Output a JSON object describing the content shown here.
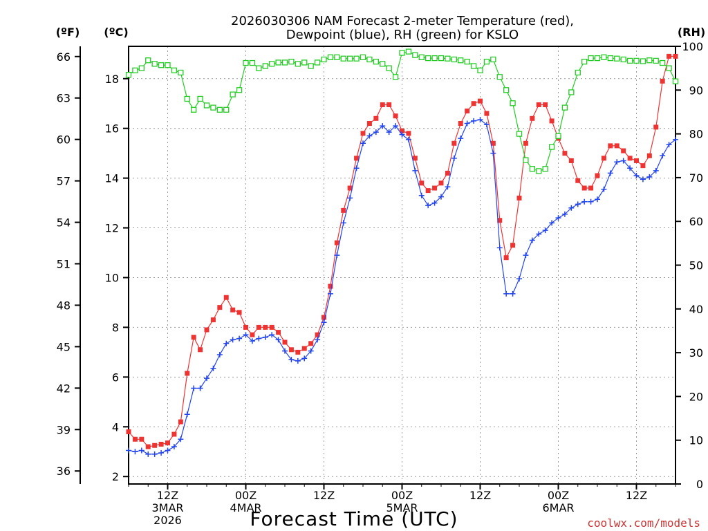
{
  "chart_data": {
    "type": "line",
    "title_line1": "2026030306 NAM Forecast 2-meter Temperature (red),",
    "title_line2": "Dewpoint (blue), RH (green) for KSLO",
    "xlabel": "Forecast Time (UTC)",
    "credit": "coolwx.com/models",
    "unit_f": "(ºF)",
    "unit_c": "(ºC)",
    "unit_rh": "(RH)",
    "x_unit": "forecast hour from 2026-03-03 06Z",
    "xlim": [
      6,
      90
    ],
    "ylim_c": [
      1.7,
      19.3
    ],
    "ylim_rh": [
      0,
      100
    ],
    "x_ticks": [
      {
        "x": 12,
        "lines": [
          "12Z",
          "3MAR",
          "2026"
        ]
      },
      {
        "x": 24,
        "lines": [
          "00Z",
          "4MAR"
        ]
      },
      {
        "x": 36,
        "lines": [
          "12Z"
        ]
      },
      {
        "x": 48,
        "lines": [
          "00Z",
          "5MAR"
        ]
      },
      {
        "x": 60,
        "lines": [
          "12Z"
        ]
      },
      {
        "x": 72,
        "lines": [
          "00Z",
          "6MAR"
        ]
      },
      {
        "x": 84,
        "lines": [
          "12Z"
        ]
      }
    ],
    "y_ticks_c": [
      2,
      4,
      6,
      8,
      10,
      12,
      14,
      16,
      18
    ],
    "y_ticks_f": [
      36,
      39,
      42,
      45,
      48,
      51,
      54,
      57,
      60,
      63,
      66
    ],
    "y_ticks_rh": [
      0,
      10,
      20,
      30,
      40,
      50,
      60,
      70,
      80,
      90,
      100
    ],
    "grid": true,
    "colors": {
      "temperature": "#ee3333",
      "dewpoint": "#2244ee",
      "rh": "#22cc22",
      "credit": "#cc3333"
    },
    "series": [
      {
        "name": "Temperature",
        "color": "#ee3333",
        "marker": "square",
        "axis": "c",
        "x": [
          6,
          7,
          8,
          9,
          10,
          11,
          12,
          13,
          14,
          15,
          16,
          17,
          18,
          19,
          20,
          21,
          22,
          23,
          24,
          25,
          26,
          27,
          28,
          29,
          30,
          31,
          32,
          33,
          34,
          35,
          36,
          37,
          38,
          39,
          40,
          41,
          42,
          43,
          44,
          45,
          46,
          47,
          48,
          49,
          50,
          51,
          52,
          53,
          54,
          55,
          56,
          57,
          58,
          59,
          60,
          61,
          62,
          63,
          64,
          65,
          66,
          67,
          68,
          69,
          70,
          71,
          72,
          73,
          74,
          75,
          76,
          77,
          78,
          79,
          80,
          81,
          82,
          83,
          84,
          85,
          86,
          87,
          88,
          89,
          90
        ],
        "values": [
          3.8,
          3.5,
          3.5,
          3.2,
          3.25,
          3.3,
          3.35,
          3.7,
          4.2,
          6.15,
          7.6,
          7.1,
          7.9,
          8.3,
          8.8,
          9.2,
          8.7,
          8.6,
          8.0,
          7.7,
          8.0,
          8.0,
          8.0,
          7.8,
          7.4,
          7.1,
          7.0,
          7.15,
          7.35,
          7.7,
          8.4,
          9.65,
          11.4,
          12.7,
          13.6,
          14.8,
          15.8,
          16.2,
          16.4,
          16.95,
          16.95,
          16.5,
          15.9,
          15.8,
          14.8,
          13.8,
          13.5,
          13.6,
          13.8,
          14.2,
          15.4,
          16.2,
          16.7,
          17.0,
          17.1,
          16.6,
          15.4,
          12.3,
          10.8,
          11.3,
          13.2,
          15.4,
          16.4,
          16.95,
          16.95,
          16.3,
          15.6,
          15.0,
          14.7,
          13.9,
          13.6,
          13.6,
          14.1,
          14.8,
          15.3,
          15.3,
          15.1,
          14.8,
          14.7,
          14.5,
          14.9,
          16.05,
          17.9,
          18.9,
          18.9
        ]
      },
      {
        "name": "Dewpoint",
        "color": "#2244ee",
        "marker": "plus",
        "axis": "c",
        "x": [
          6,
          7,
          8,
          9,
          10,
          11,
          12,
          13,
          14,
          15,
          16,
          17,
          18,
          19,
          20,
          21,
          22,
          23,
          24,
          25,
          26,
          27,
          28,
          29,
          30,
          31,
          32,
          33,
          34,
          35,
          36,
          37,
          38,
          39,
          40,
          41,
          42,
          43,
          44,
          45,
          46,
          47,
          48,
          49,
          50,
          51,
          52,
          53,
          54,
          55,
          56,
          57,
          58,
          59,
          60,
          61,
          62,
          63,
          64,
          65,
          66,
          67,
          68,
          69,
          70,
          71,
          72,
          73,
          74,
          75,
          76,
          77,
          78,
          79,
          80,
          81,
          82,
          83,
          84,
          85,
          86,
          87,
          88,
          89,
          90
        ],
        "values": [
          3.05,
          3.0,
          3.05,
          2.9,
          2.9,
          2.95,
          3.05,
          3.2,
          3.5,
          4.5,
          5.55,
          5.55,
          5.95,
          6.35,
          6.9,
          7.35,
          7.5,
          7.55,
          7.7,
          7.45,
          7.55,
          7.6,
          7.7,
          7.5,
          7.05,
          6.7,
          6.65,
          6.75,
          7.05,
          7.5,
          8.2,
          9.35,
          10.9,
          12.2,
          13.2,
          14.4,
          15.4,
          15.7,
          15.85,
          16.1,
          15.85,
          16.1,
          15.75,
          15.55,
          14.3,
          13.3,
          12.9,
          13.0,
          13.25,
          13.65,
          14.8,
          15.6,
          16.2,
          16.3,
          16.35,
          16.15,
          15.0,
          11.2,
          9.35,
          9.35,
          9.95,
          10.9,
          11.5,
          11.75,
          11.9,
          12.2,
          12.4,
          12.55,
          12.8,
          12.95,
          13.05,
          13.05,
          13.15,
          13.55,
          14.2,
          14.65,
          14.7,
          14.4,
          14.1,
          13.95,
          14.05,
          14.3,
          14.9,
          15.35,
          15.55
        ]
      },
      {
        "name": "RH",
        "color": "#22cc22",
        "marker": "open-square",
        "axis": "rh",
        "x": [
          6,
          7,
          8,
          9,
          10,
          11,
          12,
          13,
          14,
          15,
          16,
          17,
          18,
          19,
          20,
          21,
          22,
          23,
          24,
          25,
          26,
          27,
          28,
          29,
          30,
          31,
          32,
          33,
          34,
          35,
          36,
          37,
          38,
          39,
          40,
          41,
          42,
          43,
          44,
          45,
          46,
          47,
          48,
          49,
          50,
          51,
          52,
          53,
          54,
          55,
          56,
          57,
          58,
          59,
          60,
          61,
          62,
          63,
          64,
          65,
          66,
          67,
          68,
          69,
          70,
          71,
          72,
          73,
          74,
          75,
          76,
          77,
          78,
          79,
          80,
          81,
          82,
          83,
          84,
          85,
          86,
          87,
          88,
          89,
          90
        ],
        "values": [
          93.5,
          94.5,
          95.0,
          96.8,
          96.0,
          95.7,
          95.7,
          94.5,
          94.0,
          88.0,
          85.5,
          88.0,
          86.5,
          86.0,
          85.5,
          85.5,
          89.0,
          90.0,
          96.2,
          96.2,
          95.0,
          95.5,
          96.0,
          96.3,
          96.3,
          96.5,
          96.0,
          96.3,
          95.5,
          96.3,
          97.0,
          97.5,
          97.5,
          97.2,
          97.2,
          97.2,
          97.5,
          97.0,
          96.5,
          96.0,
          95.0,
          93.0,
          98.5,
          98.8,
          98.0,
          97.5,
          97.3,
          97.3,
          97.3,
          97.2,
          97.0,
          96.8,
          96.5,
          95.5,
          94.5,
          96.5,
          97.0,
          93.0,
          90.0,
          87.0,
          80.0,
          74.0,
          72.0,
          71.5,
          72.0,
          77.0,
          79.5,
          86.0,
          89.5,
          94.0,
          96.5,
          97.3,
          97.3,
          97.5,
          97.3,
          97.2,
          97.0,
          96.7,
          96.7,
          96.6,
          96.8,
          96.7,
          96.2,
          95.0,
          92.0
        ]
      }
    ]
  }
}
